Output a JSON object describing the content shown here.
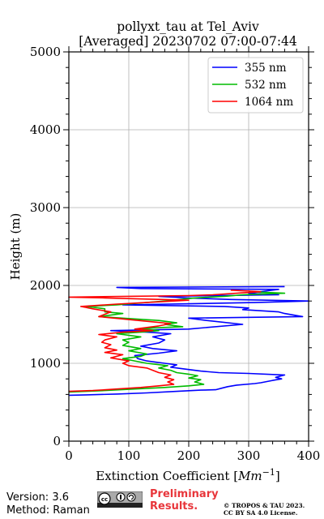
{
  "chart_data": {
    "type": "line",
    "title": [
      "pollyxt_tau at Tel_Aviv",
      "[Averaged] 20230702 07:00-07:44"
    ],
    "xlabel": "Extinction Coefficient [",
    "xlabel_unit": "Mm",
    "xlabel_exp": "−1",
    "xlabel_end": "]",
    "ylabel": "Height (m)",
    "xlim": [
      0,
      400
    ],
    "ylim": [
      0,
      5000
    ],
    "xticks": [
      "0",
      "100",
      "200",
      "300",
      "400"
    ],
    "yticks": [
      "0",
      "1000",
      "2000",
      "3000",
      "4000",
      "5000"
    ],
    "grid": true,
    "legend_position": "top-right",
    "series": [
      {
        "name": "355 nm",
        "color": "#0000ff",
        "points": [
          [
            0,
            590
          ],
          [
            30,
            595
          ],
          [
            80,
            605
          ],
          [
            130,
            620
          ],
          [
            180,
            640
          ],
          [
            220,
            655
          ],
          [
            245,
            660
          ],
          [
            255,
            680
          ],
          [
            265,
            700
          ],
          [
            280,
            720
          ],
          [
            310,
            740
          ],
          [
            320,
            750
          ],
          [
            340,
            780
          ],
          [
            355,
            800
          ],
          [
            345,
            820
          ],
          [
            360,
            850
          ],
          [
            300,
            870
          ],
          [
            250,
            880
          ],
          [
            220,
            900
          ],
          [
            200,
            920
          ],
          [
            170,
            950
          ],
          [
            180,
            980
          ],
          [
            160,
            1000
          ],
          [
            130,
            1030
          ],
          [
            115,
            1060
          ],
          [
            110,
            1100
          ],
          [
            150,
            1130
          ],
          [
            180,
            1160
          ],
          [
            140,
            1190
          ],
          [
            120,
            1220
          ],
          [
            150,
            1260
          ],
          [
            160,
            1300
          ],
          [
            140,
            1340
          ],
          [
            170,
            1380
          ],
          [
            130,
            1400
          ],
          [
            70,
            1420
          ],
          [
            200,
            1440
          ],
          [
            290,
            1500
          ],
          [
            230,
            1550
          ],
          [
            200,
            1580
          ],
          [
            390,
            1600
          ],
          [
            360,
            1640
          ],
          [
            350,
            1660
          ],
          [
            290,
            1690
          ],
          [
            300,
            1710
          ],
          [
            260,
            1730
          ],
          [
            90,
            1750
          ],
          [
            310,
            1780
          ],
          [
            400,
            1800
          ],
          [
            270,
            1820
          ],
          [
            200,
            1840
          ],
          [
            150,
            1860
          ],
          [
            350,
            1880
          ],
          [
            300,
            1900
          ],
          [
            350,
            1950
          ],
          [
            120,
            1960
          ],
          [
            80,
            1975
          ],
          [
            360,
            1985
          ]
        ]
      },
      {
        "name": "532 nm",
        "color": "#00bb00",
        "points": [
          [
            0,
            630
          ],
          [
            60,
            650
          ],
          [
            110,
            670
          ],
          [
            160,
            690
          ],
          [
            200,
            710
          ],
          [
            225,
            730
          ],
          [
            210,
            760
          ],
          [
            220,
            790
          ],
          [
            200,
            810
          ],
          [
            215,
            840
          ],
          [
            200,
            860
          ],
          [
            180,
            880
          ],
          [
            170,
            910
          ],
          [
            150,
            940
          ],
          [
            165,
            970
          ],
          [
            130,
            1000
          ],
          [
            110,
            1030
          ],
          [
            90,
            1060
          ],
          [
            120,
            1090
          ],
          [
            130,
            1120
          ],
          [
            100,
            1160
          ],
          [
            120,
            1190
          ],
          [
            90,
            1230
          ],
          [
            100,
            1270
          ],
          [
            90,
            1300
          ],
          [
            120,
            1340
          ],
          [
            80,
            1380
          ],
          [
            120,
            1400
          ],
          [
            150,
            1420
          ],
          [
            120,
            1450
          ],
          [
            190,
            1470
          ],
          [
            160,
            1500
          ],
          [
            180,
            1520
          ],
          [
            150,
            1550
          ],
          [
            110,
            1570
          ],
          [
            50,
            1600
          ],
          [
            90,
            1640
          ],
          [
            60,
            1660
          ],
          [
            60,
            1700
          ],
          [
            30,
            1730
          ],
          [
            80,
            1750
          ],
          [
            160,
            1800
          ],
          [
            210,
            1840
          ],
          [
            260,
            1860
          ],
          [
            290,
            1880
          ],
          [
            360,
            1900
          ],
          [
            300,
            1920
          ]
        ]
      },
      {
        "name": "1064 nm",
        "color": "#ff0000",
        "points": [
          [
            0,
            640
          ],
          [
            40,
            650
          ],
          [
            80,
            670
          ],
          [
            120,
            690
          ],
          [
            150,
            710
          ],
          [
            175,
            730
          ],
          [
            165,
            760
          ],
          [
            175,
            790
          ],
          [
            160,
            820
          ],
          [
            170,
            850
          ],
          [
            150,
            880
          ],
          [
            140,
            910
          ],
          [
            130,
            940
          ],
          [
            100,
            970
          ],
          [
            90,
            1000
          ],
          [
            100,
            1030
          ],
          [
            70,
            1070
          ],
          [
            90,
            1110
          ],
          [
            60,
            1140
          ],
          [
            80,
            1170
          ],
          [
            60,
            1200
          ],
          [
            70,
            1240
          ],
          [
            55,
            1270
          ],
          [
            60,
            1300
          ],
          [
            80,
            1340
          ],
          [
            50,
            1370
          ],
          [
            90,
            1400
          ],
          [
            140,
            1420
          ],
          [
            110,
            1440
          ],
          [
            150,
            1480
          ],
          [
            170,
            1510
          ],
          [
            130,
            1540
          ],
          [
            90,
            1570
          ],
          [
            50,
            1600
          ],
          [
            60,
            1630
          ],
          [
            70,
            1660
          ],
          [
            40,
            1700
          ],
          [
            20,
            1730
          ],
          [
            80,
            1760
          ],
          [
            150,
            1790
          ],
          [
            200,
            1810
          ],
          [
            60,
            1840
          ],
          [
            0,
            1850
          ],
          [
            200,
            1870
          ],
          [
            240,
            1880
          ],
          [
            280,
            1900
          ],
          [
            320,
            1920
          ],
          [
            270,
            1940
          ]
        ]
      }
    ]
  },
  "footer": {
    "version": "Version: 3.6",
    "method": "Method: Raman",
    "preliminary_line1": "Preliminary",
    "preliminary_line2": "Results.",
    "copyright_line1": "© TROPOS & TAU 2023.",
    "copyright_line2": "CC BY SA 4.0 License.",
    "license_badge": "cc-by-sa-badge"
  }
}
